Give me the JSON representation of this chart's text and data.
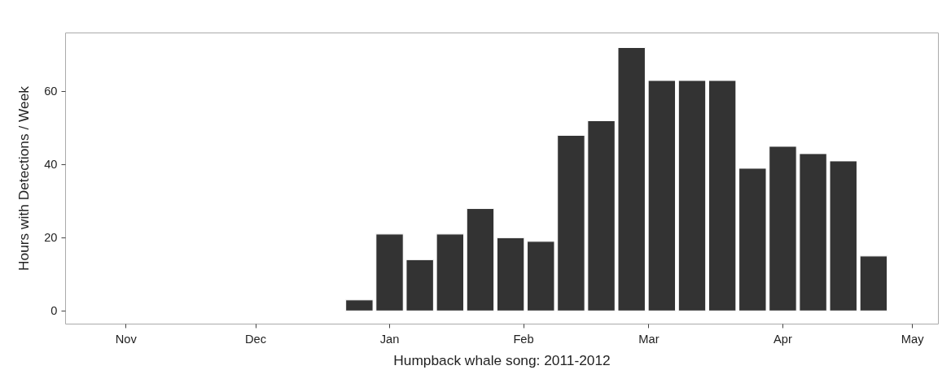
{
  "chart_data": {
    "type": "bar",
    "xlabel": "Humpback whale song: 2011-2012",
    "ylabel": "Hours with Detections / Week",
    "x": [
      "2011-12-25",
      "2012-01-01",
      "2012-01-08",
      "2012-01-15",
      "2012-01-22",
      "2012-01-29",
      "2012-02-05",
      "2012-02-12",
      "2012-02-19",
      "2012-02-26",
      "2012-03-04",
      "2012-03-11",
      "2012-03-18",
      "2012-03-25",
      "2012-04-01",
      "2012-04-08",
      "2012-04-15",
      "2012-04-22"
    ],
    "values": [
      3,
      21,
      14,
      21,
      28,
      20,
      19,
      48,
      52,
      72,
      63,
      63,
      63,
      39,
      45,
      43,
      41,
      15
    ],
    "color": "#333333",
    "xlim": [
      "2011-10-18",
      "2012-05-07"
    ],
    "xticks": [
      {
        "value": "2011-11-01",
        "label": "Nov"
      },
      {
        "value": "2011-12-01",
        "label": "Dec"
      },
      {
        "value": "2012-01-01",
        "label": "Jan"
      },
      {
        "value": "2012-02-01",
        "label": "Feb"
      },
      {
        "value": "2012-03-01",
        "label": "Mar"
      },
      {
        "value": "2012-04-01",
        "label": "Apr"
      },
      {
        "value": "2012-05-01",
        "label": "May"
      }
    ],
    "ylim": [
      -3.6,
      76
    ],
    "yticks": [
      0,
      20,
      40,
      60
    ],
    "grid": false
  }
}
